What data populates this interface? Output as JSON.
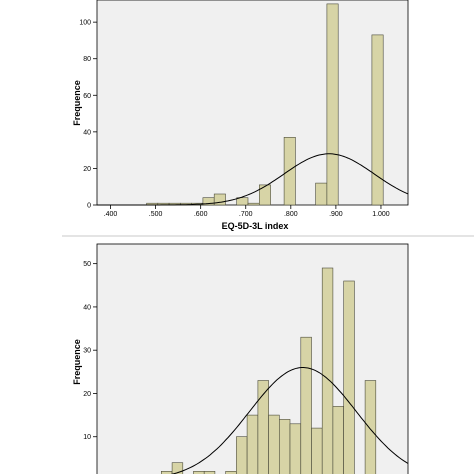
{
  "chart_data": [
    {
      "type": "bar",
      "title": "",
      "xlabel": "EQ-5D-3L index",
      "ylabel": "Frequence",
      "xlim": [
        0.37,
        1.06
      ],
      "ylim": [
        0,
        105
      ],
      "bin_width": 0.025,
      "x_ticks": [
        {
          "value": 0.4,
          "label": ".400"
        },
        {
          "value": 0.5,
          "label": ".500"
        },
        {
          "value": 0.6,
          "label": ".600"
        },
        {
          "value": 0.7,
          "label": ".700"
        },
        {
          "value": 0.8,
          "label": ".800"
        },
        {
          "value": 0.9,
          "label": ".900"
        },
        {
          "value": 1.0,
          "label": "1.000"
        }
      ],
      "y_ticks": [
        {
          "value": 0,
          "label": "0"
        },
        {
          "value": 20,
          "label": "20"
        },
        {
          "value": 40,
          "label": "40"
        },
        {
          "value": 60,
          "label": "60"
        },
        {
          "value": 80,
          "label": "80"
        },
        {
          "value": 100,
          "label": "100"
        }
      ],
      "bins": [
        {
          "x": 0.48,
          "count": 1
        },
        {
          "x": 0.505,
          "count": 1
        },
        {
          "x": 0.53,
          "count": 1
        },
        {
          "x": 0.555,
          "count": 1
        },
        {
          "x": 0.58,
          "count": 1
        },
        {
          "x": 0.605,
          "count": 4
        },
        {
          "x": 0.63,
          "count": 6
        },
        {
          "x": 0.68,
          "count": 4
        },
        {
          "x": 0.705,
          "count": 1
        },
        {
          "x": 0.73,
          "count": 11
        },
        {
          "x": 0.785,
          "count": 37
        },
        {
          "x": 0.855,
          "count": 12
        },
        {
          "x": 0.88,
          "count": 110
        },
        {
          "x": 0.98,
          "count": 93
        }
      ],
      "normal_curve": {
        "mean": 0.885,
        "sd": 0.1,
        "peak": 28
      }
    },
    {
      "type": "bar",
      "title": "",
      "xlabel": "",
      "ylabel": "Frequence",
      "xlim": [
        0,
        29
      ],
      "ylim": [
        0,
        52
      ],
      "x_ticks": [],
      "y_ticks": [
        {
          "value": 10,
          "label": "10"
        },
        {
          "value": 20,
          "label": "20"
        },
        {
          "value": 30,
          "label": "30"
        },
        {
          "value": 40,
          "label": "40"
        },
        {
          "value": 50,
          "label": "50"
        }
      ],
      "bin_width": 1,
      "bins": [
        {
          "x": 3,
          "count": 1
        },
        {
          "x": 4,
          "count": 1
        },
        {
          "x": 5,
          "count": 1
        },
        {
          "x": 6,
          "count": 2
        },
        {
          "x": 7,
          "count": 4
        },
        {
          "x": 9,
          "count": 2
        },
        {
          "x": 10,
          "count": 2
        },
        {
          "x": 12,
          "count": 2
        },
        {
          "x": 13,
          "count": 10
        },
        {
          "x": 14,
          "count": 15
        },
        {
          "x": 15,
          "count": 23
        },
        {
          "x": 16,
          "count": 15
        },
        {
          "x": 17,
          "count": 14
        },
        {
          "x": 18,
          "count": 13
        },
        {
          "x": 19,
          "count": 33
        },
        {
          "x": 20,
          "count": 12
        },
        {
          "x": 21,
          "count": 49
        },
        {
          "x": 22,
          "count": 17
        },
        {
          "x": 23,
          "count": 46
        },
        {
          "x": 25,
          "count": 23
        }
      ],
      "normal_curve": {
        "mean": 19.2,
        "sd": 5.0,
        "peak": 26
      }
    }
  ]
}
